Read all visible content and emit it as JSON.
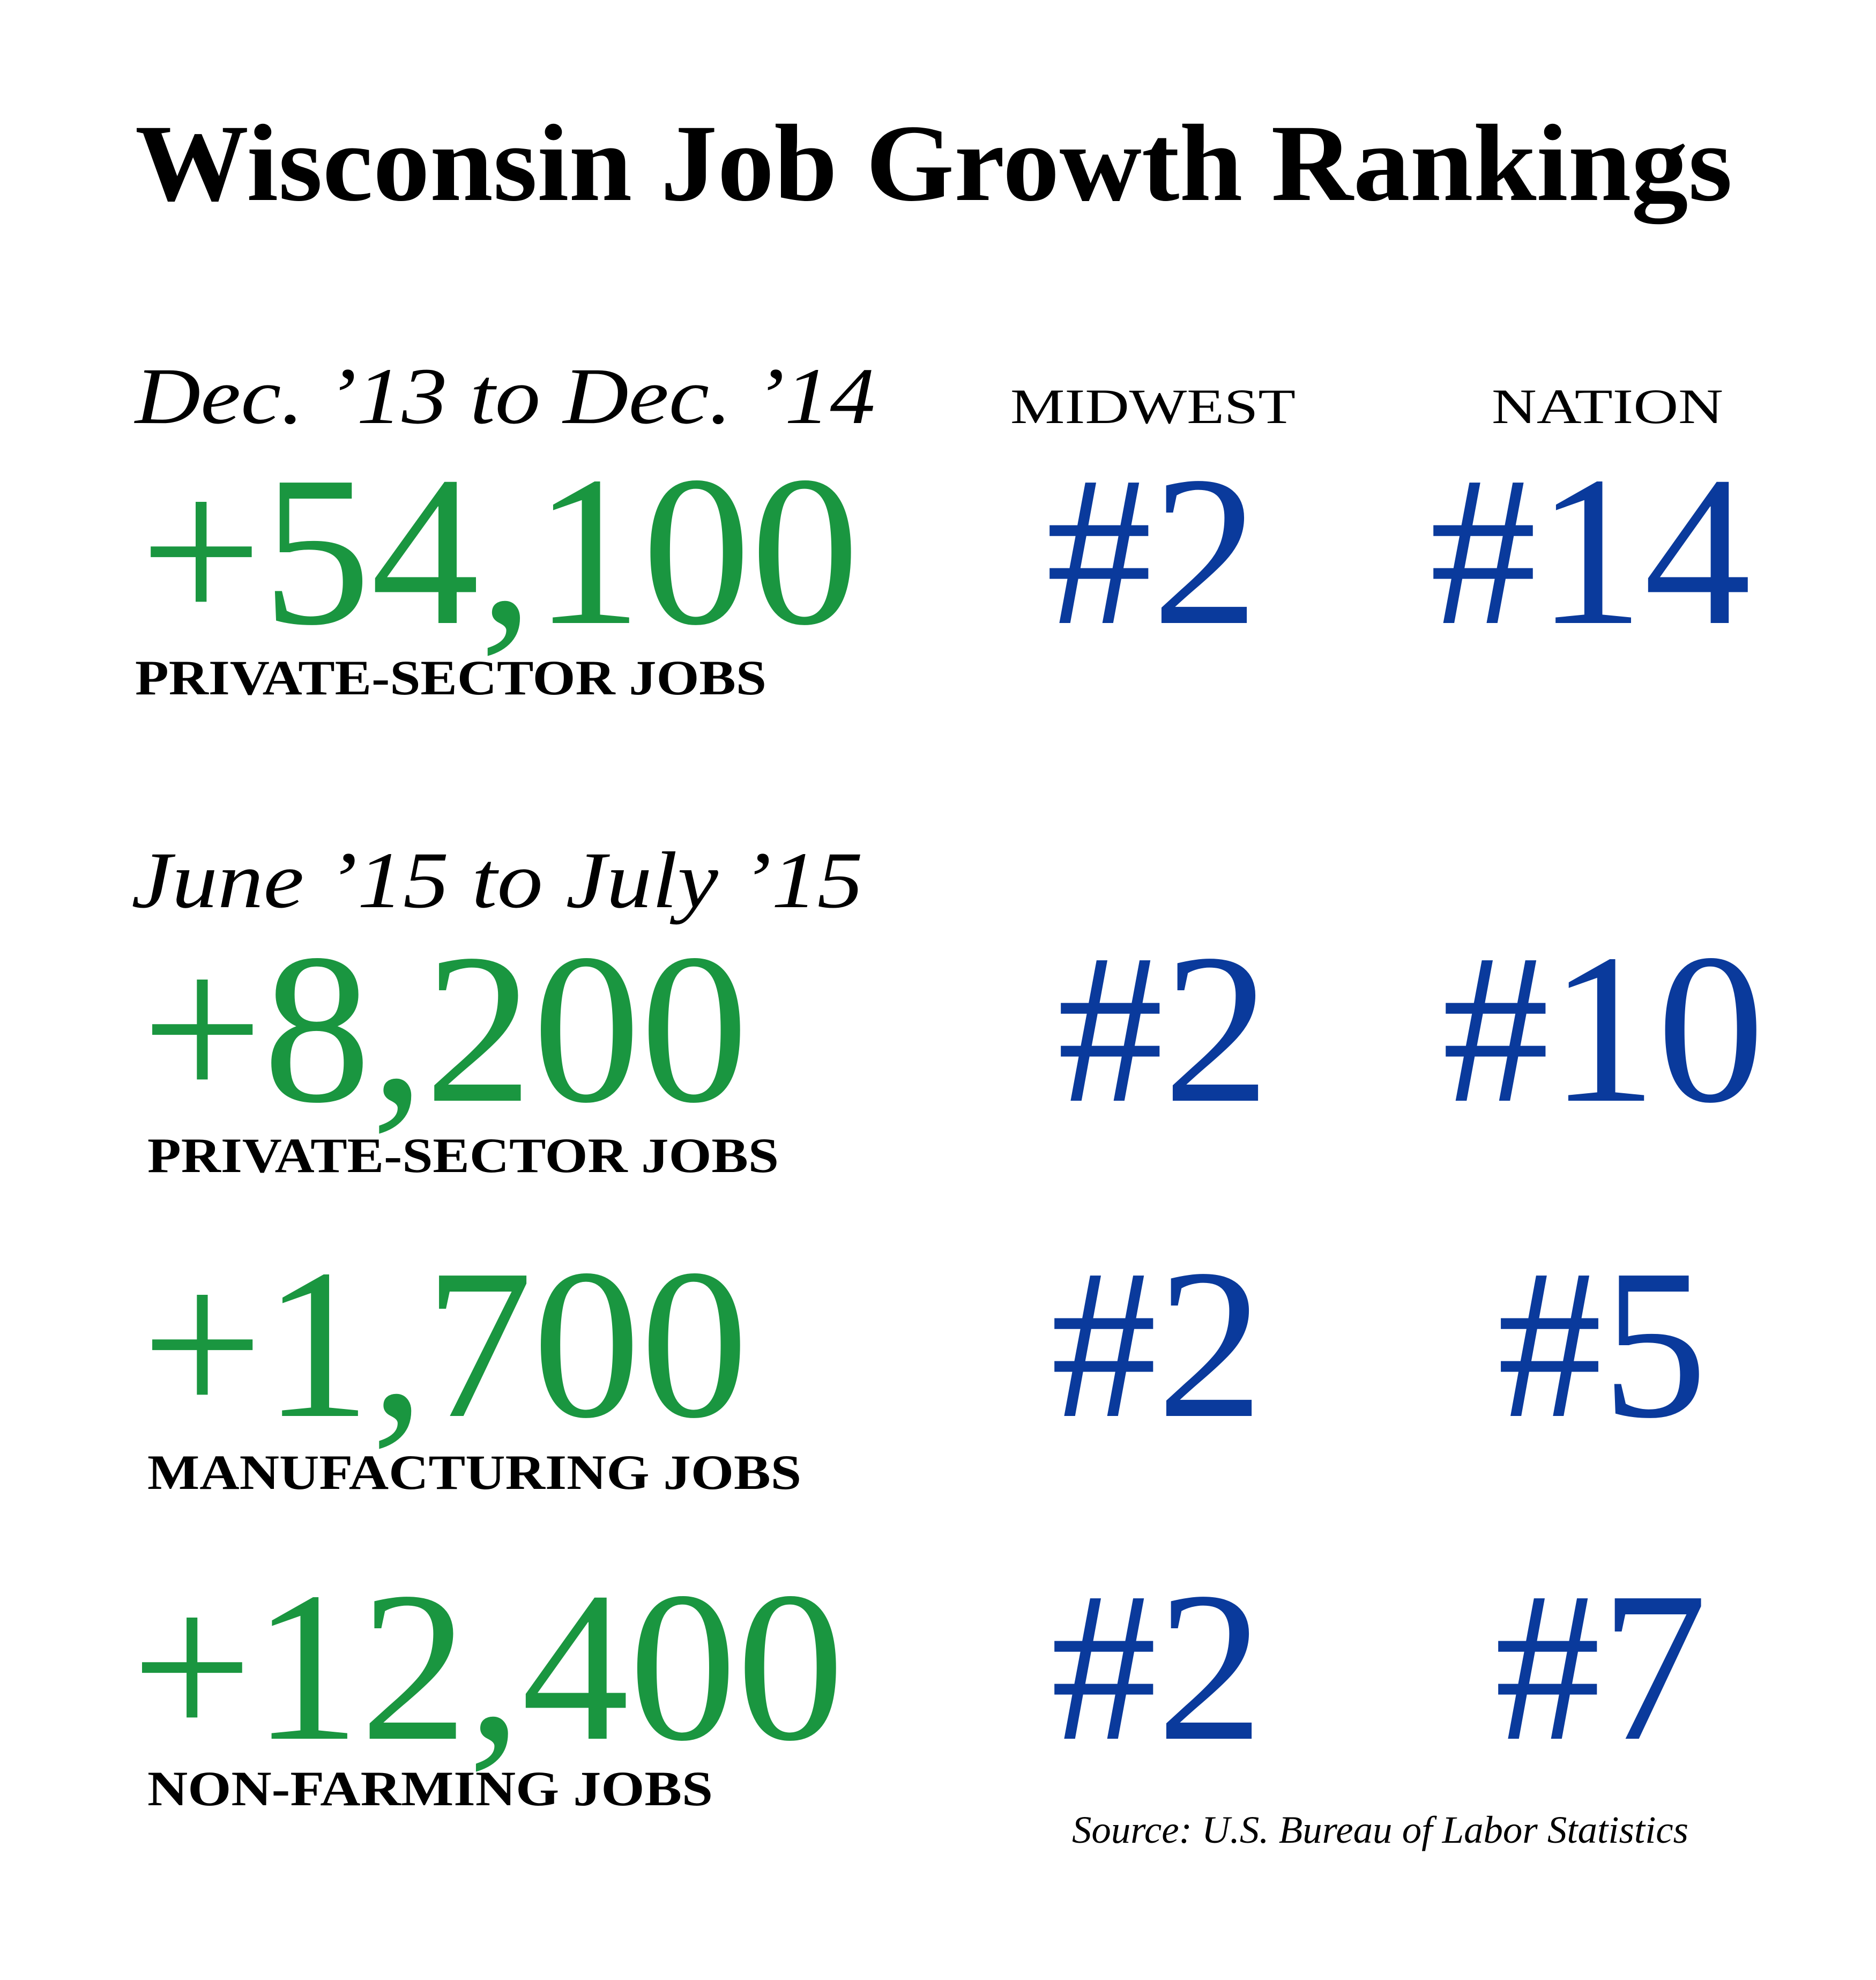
{
  "title": "Wisconsin Job Growth Rankings",
  "columns": [
    "MIDWEST",
    "NATION"
  ],
  "sections": [
    {
      "period": "Dec. ’13 to Dec. ’14",
      "rows": [
        {
          "value": "+54,100",
          "label": "PRIVATE-SECTOR JOBS",
          "ranks": [
            "#2",
            "#14"
          ]
        }
      ]
    },
    {
      "period": "June ’15 to July ’15",
      "rows": [
        {
          "value": "+8,200",
          "label": "PRIVATE-SECTOR JOBS",
          "ranks": [
            "#2",
            "#10"
          ]
        },
        {
          "value": "+1,700",
          "label": "MANUFACTURING JOBS",
          "ranks": [
            "#2",
            "#5"
          ]
        },
        {
          "value": "+12,400",
          "label": "NON-FARMING JOBS",
          "ranks": [
            "#2",
            "#7"
          ]
        }
      ]
    }
  ],
  "source": "Source: U.S. Bureau of Labor Statistics"
}
